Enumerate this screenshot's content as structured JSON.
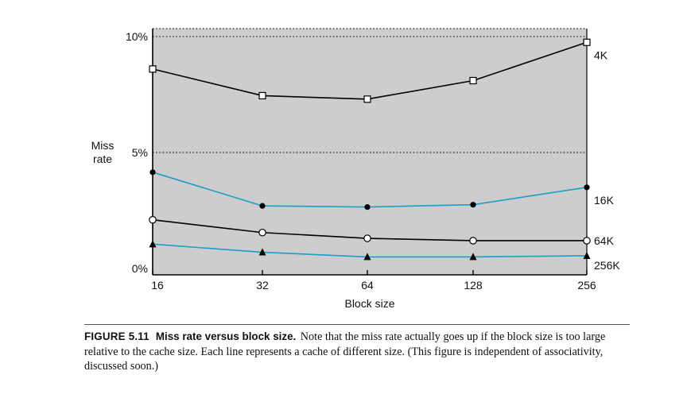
{
  "chart_data": {
    "type": "line",
    "title": "",
    "xlabel": "Block size",
    "ylabel": [
      "Miss",
      "rate"
    ],
    "categories": [
      "16",
      "32",
      "64",
      "128",
      "256"
    ],
    "y_ticks": [
      {
        "value": 0,
        "label": "0%"
      },
      {
        "value": 5,
        "label": "5%"
      },
      {
        "value": 10,
        "label": "10%"
      }
    ],
    "ylim": [
      0,
      10.4
    ],
    "grid": "dotted horizontal at 5% and 10%",
    "series": [
      {
        "name": "4K",
        "color": "#000000",
        "marker": "open-square",
        "values": [
          8.6,
          7.45,
          7.3,
          8.1,
          9.75
        ]
      },
      {
        "name": "16K",
        "color": "#1a9fc6",
        "marker": "filled-circle",
        "values": [
          4.15,
          2.7,
          2.65,
          2.75,
          3.5
        ]
      },
      {
        "name": "64K",
        "color": "#000000",
        "marker": "open-circle",
        "values": [
          2.1,
          1.55,
          1.3,
          1.2,
          1.2
        ]
      },
      {
        "name": "256K",
        "color": "#1a9fc6",
        "marker": "filled-triangle",
        "values": [
          1.05,
          0.7,
          0.5,
          0.5,
          0.55
        ]
      }
    ]
  },
  "caption": {
    "label": "FIGURE 5.11",
    "title": "Miss rate versus block size.",
    "text": "Note that the miss rate actually goes up if the block size is too large relative to the cache size. Each line represents a cache of different size. (This figure is independent of associativity, discussed soon.)"
  }
}
